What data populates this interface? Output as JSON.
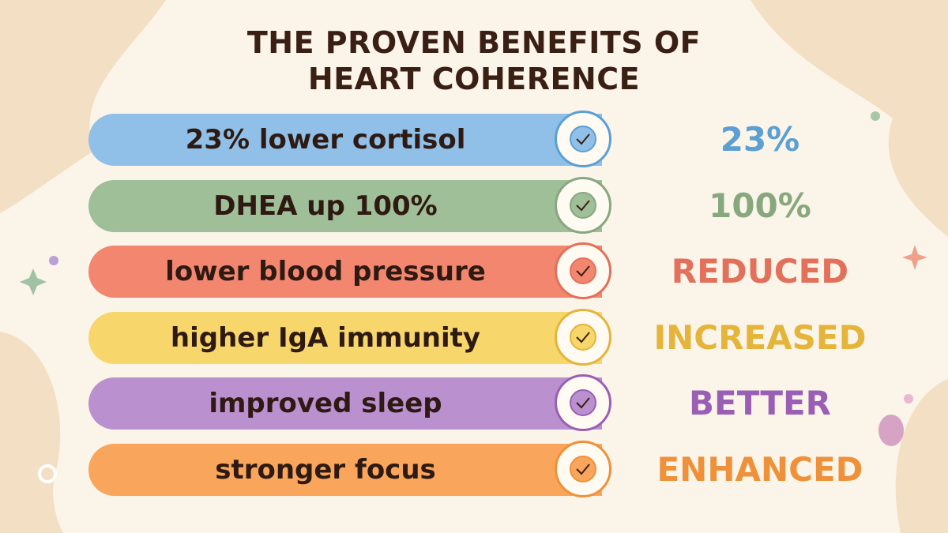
{
  "title": [
    "THE PROVEN BENEFITS OF",
    "HEART COHERENCE"
  ],
  "benefits": [
    {
      "label": "23% lower cortisol",
      "result": "23%"
    },
    {
      "label": "DHEA up 100%",
      "result": "100%"
    },
    {
      "label": "lower blood pressure",
      "result": "REDUCED"
    },
    {
      "label": "higher IgA immunity",
      "result": "INCREASED"
    },
    {
      "label": "improved sleep",
      "result": "BETTER"
    },
    {
      "label": "stronger focus",
      "result": "ENHANCED"
    }
  ]
}
